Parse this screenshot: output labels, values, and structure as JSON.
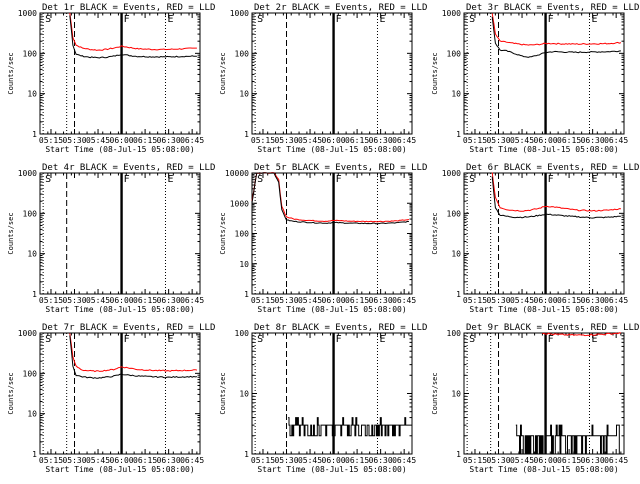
{
  "chart_data": [
    {
      "type": "line",
      "title": "Det 1r BLACK = Events, RED = LLD",
      "xlabel": "Start Time (08-Jul-15 05:08:00)",
      "ylabel": "Counts/sec",
      "yscale": "log",
      "ylim": [
        1,
        1000
      ],
      "xlim": [
        "05:08",
        "08:50"
      ],
      "xticks": [
        "05:15",
        "05:30",
        "05:45",
        "06:00",
        "06:15",
        "06:30",
        "06:45"
      ],
      "yticks": [
        "1",
        "10",
        "100",
        "1000"
      ],
      "markers": [
        {
          "label": "S",
          "time": "05:10",
          "style": "dotted"
        },
        {
          "label": "",
          "time": "05:25",
          "style": "dotted"
        },
        {
          "label": "",
          "time": "05:30",
          "style": "dashed"
        },
        {
          "label": "F",
          "time": "06:00",
          "style": "solid"
        },
        {
          "label": "E",
          "time": "06:28",
          "style": "dotted"
        }
      ],
      "series": [
        {
          "name": "LLD",
          "color": "#ff0000",
          "start": "05:27",
          "x": [
            "05:27",
            "05:29",
            "05:31",
            "05:35",
            "05:40",
            "05:45",
            "05:50",
            "05:55",
            "06:00",
            "06:05",
            "06:10",
            "06:20",
            "06:30",
            "06:40",
            "06:48"
          ],
          "values": [
            1000,
            250,
            160,
            135,
            125,
            120,
            125,
            135,
            150,
            140,
            130,
            125,
            125,
            130,
            135
          ]
        },
        {
          "name": "Events",
          "color": "#000000",
          "start": "05:27",
          "x": [
            "05:27",
            "05:29",
            "05:31",
            "05:35",
            "05:40",
            "05:45",
            "05:50",
            "05:55",
            "06:00",
            "06:05",
            "06:10",
            "06:20",
            "06:30",
            "06:40",
            "06:48"
          ],
          "values": [
            900,
            160,
            95,
            85,
            80,
            78,
            80,
            85,
            95,
            88,
            84,
            82,
            82,
            84,
            85
          ]
        }
      ]
    },
    {
      "type": "line",
      "title": "Det 2r BLACK = Events, RED = LLD",
      "xlabel": "Start Time (08-Jul-15 05:08:00)",
      "ylabel": "Counts/sec",
      "yscale": "log",
      "ylim": [
        1,
        1000
      ],
      "xlim": [
        "05:08",
        "08:50"
      ],
      "xticks": [
        "05:15",
        "05:30",
        "05:45",
        "06:00",
        "06:15",
        "06:30",
        "06:45"
      ],
      "yticks": [
        "1",
        "10",
        "100",
        "1000"
      ],
      "markers": [
        {
          "label": "S",
          "time": "05:10",
          "style": "dotted"
        },
        {
          "label": "",
          "time": "05:30",
          "style": "dashed"
        },
        {
          "label": "F",
          "time": "06:00",
          "style": "solid"
        },
        {
          "label": "E",
          "time": "06:28",
          "style": "dotted"
        }
      ],
      "series": []
    },
    {
      "type": "line",
      "title": "Det 3r BLACK = Events, RED = LLD",
      "xlabel": "Start Time (08-Jul-15 05:08:00)",
      "ylabel": "Counts/sec",
      "yscale": "log",
      "ylim": [
        1,
        1000
      ],
      "xlim": [
        "05:08",
        "08:50"
      ],
      "xticks": [
        "05:15",
        "05:30",
        "05:45",
        "06:00",
        "06:15",
        "06:30",
        "06:45"
      ],
      "yticks": [
        "1",
        "10",
        "100",
        "1000"
      ],
      "markers": [
        {
          "label": "S",
          "time": "05:10",
          "style": "dotted"
        },
        {
          "label": "",
          "time": "05:25",
          "style": "dotted"
        },
        {
          "label": "",
          "time": "05:30",
          "style": "dashed"
        },
        {
          "label": "F",
          "time": "06:00",
          "style": "solid"
        },
        {
          "label": "E",
          "time": "06:28",
          "style": "dotted"
        }
      ],
      "series": [
        {
          "name": "LLD",
          "color": "#ff0000",
          "start": "05:26",
          "x": [
            "05:26",
            "05:28",
            "05:31",
            "05:35",
            "05:40",
            "05:45",
            "05:50",
            "05:55",
            "06:00",
            "06:05",
            "06:10",
            "06:20",
            "06:30",
            "06:40",
            "06:48"
          ],
          "values": [
            1000,
            300,
            200,
            190,
            175,
            165,
            160,
            165,
            175,
            175,
            172,
            170,
            172,
            175,
            185
          ]
        },
        {
          "name": "Events",
          "color": "#000000",
          "start": "05:26",
          "x": [
            "05:26",
            "05:28",
            "05:31",
            "05:35",
            "05:40",
            "05:45",
            "05:50",
            "05:55",
            "06:00",
            "06:05",
            "06:10",
            "06:20",
            "06:30",
            "06:40",
            "06:48"
          ],
          "values": [
            800,
            180,
            120,
            115,
            100,
            85,
            80,
            90,
            105,
            110,
            108,
            106,
            108,
            110,
            115
          ]
        }
      ]
    },
    {
      "type": "line",
      "title": "Det 4r BLACK = Events, RED = LLD",
      "xlabel": "Start Time (08-Jul-15 05:08:00)",
      "ylabel": "Counts/sec",
      "yscale": "log",
      "ylim": [
        1,
        1000
      ],
      "xlim": [
        "05:08",
        "08:50"
      ],
      "xticks": [
        "05:15",
        "05:30",
        "05:45",
        "06:00",
        "06:15",
        "06:30",
        "06:45"
      ],
      "yticks": [
        "1",
        "10",
        "100",
        "1000"
      ],
      "markers": [
        {
          "label": "S",
          "time": "05:10",
          "style": "dotted"
        },
        {
          "label": "",
          "time": "05:25",
          "style": "dashed"
        },
        {
          "label": "F",
          "time": "06:00",
          "style": "solid"
        },
        {
          "label": "E",
          "time": "06:28",
          "style": "dotted"
        }
      ],
      "series": []
    },
    {
      "type": "line",
      "title": "Det 5r BLACK = Events, RED = LLD",
      "xlabel": "Start Time (08-Jul-15 05:08:00)",
      "ylabel": "Counts/sec",
      "yscale": "log",
      "ylim": [
        1,
        10000
      ],
      "xlim": [
        "05:08",
        "08:50"
      ],
      "xticks": [
        "05:15",
        "05:30",
        "05:45",
        "06:00",
        "06:15",
        "06:30",
        "06:45"
      ],
      "yticks": [
        "1",
        "10",
        "100",
        "1000",
        "10000"
      ],
      "markers": [
        {
          "label": "S",
          "time": "05:10",
          "style": "dotted"
        },
        {
          "label": "",
          "time": "05:30",
          "style": "dashed"
        },
        {
          "label": "F",
          "time": "06:00",
          "style": "solid"
        },
        {
          "label": "E",
          "time": "06:28",
          "style": "dotted"
        }
      ],
      "series": [
        {
          "name": "LLD",
          "color": "#ff0000",
          "start": "05:08",
          "x": [
            "05:08",
            "05:11",
            "05:22",
            "05:25",
            "05:27",
            "05:30",
            "05:35",
            "05:40",
            "05:45",
            "05:50",
            "05:55",
            "06:00",
            "06:05",
            "06:10",
            "06:20",
            "06:30",
            "06:40",
            "06:48"
          ],
          "values": [
            1200,
            10000,
            10000,
            6000,
            800,
            350,
            300,
            280,
            270,
            260,
            255,
            270,
            265,
            255,
            250,
            250,
            260,
            290
          ]
        },
        {
          "name": "Events",
          "color": "#000000",
          "start": "05:08",
          "x": [
            "05:08",
            "05:11",
            "05:22",
            "05:25",
            "05:27",
            "05:30",
            "05:35",
            "05:40",
            "05:45",
            "05:50",
            "05:55",
            "06:00",
            "06:05",
            "06:10",
            "06:20",
            "06:30",
            "06:40",
            "06:48"
          ],
          "values": [
            1000,
            10000,
            10000,
            5000,
            600,
            280,
            250,
            240,
            230,
            225,
            220,
            230,
            225,
            220,
            215,
            215,
            225,
            250
          ]
        }
      ]
    },
    {
      "type": "line",
      "title": "Det 6r BLACK = Events, RED = LLD",
      "xlabel": "Start Time (08-Jul-15 05:08:00)",
      "ylabel": "Counts/sec",
      "yscale": "log",
      "ylim": [
        1,
        1000
      ],
      "xlim": [
        "05:08",
        "08:50"
      ],
      "xticks": [
        "05:15",
        "05:30",
        "05:45",
        "06:00",
        "06:15",
        "06:30",
        "06:45"
      ],
      "yticks": [
        "1",
        "10",
        "100",
        "1000"
      ],
      "markers": [
        {
          "label": "S",
          "time": "05:10",
          "style": "dotted"
        },
        {
          "label": "",
          "time": "05:25",
          "style": "dotted"
        },
        {
          "label": "",
          "time": "05:30",
          "style": "dashed"
        },
        {
          "label": "F",
          "time": "06:00",
          "style": "solid"
        },
        {
          "label": "E",
          "time": "06:28",
          "style": "dotted"
        }
      ],
      "series": [
        {
          "name": "LLD",
          "color": "#ff0000",
          "start": "05:26",
          "x": [
            "05:26",
            "05:28",
            "05:31",
            "05:35",
            "05:40",
            "05:45",
            "05:50",
            "05:55",
            "06:00",
            "06:05",
            "06:10",
            "06:20",
            "06:30",
            "06:40",
            "06:48"
          ],
          "values": [
            1000,
            250,
            140,
            125,
            118,
            115,
            120,
            130,
            150,
            145,
            135,
            120,
            115,
            120,
            130
          ]
        },
        {
          "name": "Events",
          "color": "#000000",
          "start": "05:26",
          "x": [
            "05:26",
            "05:28",
            "05:31",
            "05:35",
            "05:40",
            "05:45",
            "05:50",
            "05:55",
            "06:00",
            "06:05",
            "06:10",
            "06:20",
            "06:30",
            "06:40",
            "06:48"
          ],
          "values": [
            800,
            140,
            90,
            85,
            80,
            80,
            82,
            88,
            95,
            92,
            88,
            82,
            78,
            80,
            85
          ]
        }
      ]
    },
    {
      "type": "line",
      "title": "Det 7r BLACK = Events, RED = LLD",
      "xlabel": "Start Time (08-Jul-15 05:08:00)",
      "ylabel": "Counts/sec",
      "yscale": "log",
      "ylim": [
        1,
        1000
      ],
      "xlim": [
        "05:08",
        "08:50"
      ],
      "xticks": [
        "05:15",
        "05:30",
        "05:45",
        "06:00",
        "06:15",
        "06:30",
        "06:45"
      ],
      "yticks": [
        "1",
        "10",
        "100",
        "1000"
      ],
      "markers": [
        {
          "label": "S",
          "time": "05:10",
          "style": "dotted"
        },
        {
          "label": "",
          "time": "05:25",
          "style": "dotted"
        },
        {
          "label": "",
          "time": "05:30",
          "style": "dashed"
        },
        {
          "label": "F",
          "time": "06:00",
          "style": "solid"
        },
        {
          "label": "E",
          "time": "06:28",
          "style": "dotted"
        }
      ],
      "series": [
        {
          "name": "LLD",
          "color": "#ff0000",
          "start": "05:27",
          "x": [
            "05:27",
            "05:29",
            "05:31",
            "05:35",
            "05:40",
            "05:45",
            "05:50",
            "05:55",
            "06:00",
            "06:05",
            "06:10",
            "06:20",
            "06:30",
            "06:40",
            "06:48"
          ],
          "values": [
            1000,
            250,
            150,
            120,
            115,
            113,
            118,
            125,
            145,
            135,
            125,
            118,
            115,
            118,
            120
          ]
        },
        {
          "name": "Events",
          "color": "#000000",
          "start": "05:27",
          "x": [
            "05:27",
            "05:29",
            "05:31",
            "05:35",
            "05:40",
            "05:45",
            "05:50",
            "05:55",
            "06:00",
            "06:05",
            "06:10",
            "06:20",
            "06:30",
            "06:40",
            "06:48"
          ],
          "values": [
            900,
            150,
            90,
            82,
            78,
            77,
            80,
            85,
            95,
            90,
            86,
            82,
            80,
            82,
            83
          ]
        }
      ]
    },
    {
      "type": "line",
      "title": "Det 8r BLACK = Events, RED = LLD",
      "xlabel": "Start Time (08-Jul-15 05:08:00)",
      "ylabel": "Counts/sec",
      "yscale": "log",
      "ylim": [
        1,
        100
      ],
      "xlim": [
        "05:08",
        "08:50"
      ],
      "xticks": [
        "05:15",
        "05:30",
        "05:45",
        "06:00",
        "06:15",
        "06:30",
        "06:45"
      ],
      "yticks": [
        "1",
        "10",
        "100"
      ],
      "markers": [
        {
          "label": "S",
          "time": "05:10",
          "style": "dotted"
        },
        {
          "label": "",
          "time": "05:30",
          "style": "dashed"
        },
        {
          "label": "F",
          "time": "06:00",
          "style": "solid"
        },
        {
          "label": "E",
          "time": "06:28",
          "style": "dotted"
        }
      ],
      "series": [
        {
          "name": "Events",
          "color": "#000000",
          "noise": "low-counts",
          "start": "05:31",
          "x": [
            "05:31",
            "06:48"
          ],
          "values": [
            2,
            3
          ]
        }
      ]
    },
    {
      "type": "line",
      "title": "Det 9r BLACK = Events, RED = LLD",
      "xlabel": "Start Time (08-Jul-15 05:08:00)",
      "ylabel": "Counts/sec",
      "yscale": "log",
      "ylim": [
        1,
        100
      ],
      "xlim": [
        "05:08",
        "08:50"
      ],
      "xticks": [
        "05:15",
        "05:30",
        "05:45",
        "06:00",
        "06:15",
        "06:30",
        "06:45"
      ],
      "yticks": [
        "1",
        "10",
        "100"
      ],
      "markers": [
        {
          "label": "S",
          "time": "05:10",
          "style": "dotted"
        },
        {
          "label": "",
          "time": "05:25",
          "style": "dotted"
        },
        {
          "label": "",
          "time": "05:30",
          "style": "dashed"
        },
        {
          "label": "F",
          "time": "06:00",
          "style": "solid"
        },
        {
          "label": "E",
          "time": "06:28",
          "style": "dotted"
        }
      ],
      "series": [
        {
          "name": "LLD",
          "color": "#ff0000",
          "start": "05:58",
          "x": [
            "05:58",
            "06:05",
            "06:20",
            "06:35",
            "06:48"
          ],
          "values": [
            100,
            95,
            92,
            95,
            100
          ]
        },
        {
          "name": "Events",
          "color": "#000000",
          "noise": "low-counts",
          "start": "05:41",
          "x": [
            "05:41",
            "06:48"
          ],
          "values": [
            1,
            2
          ]
        }
      ]
    }
  ]
}
